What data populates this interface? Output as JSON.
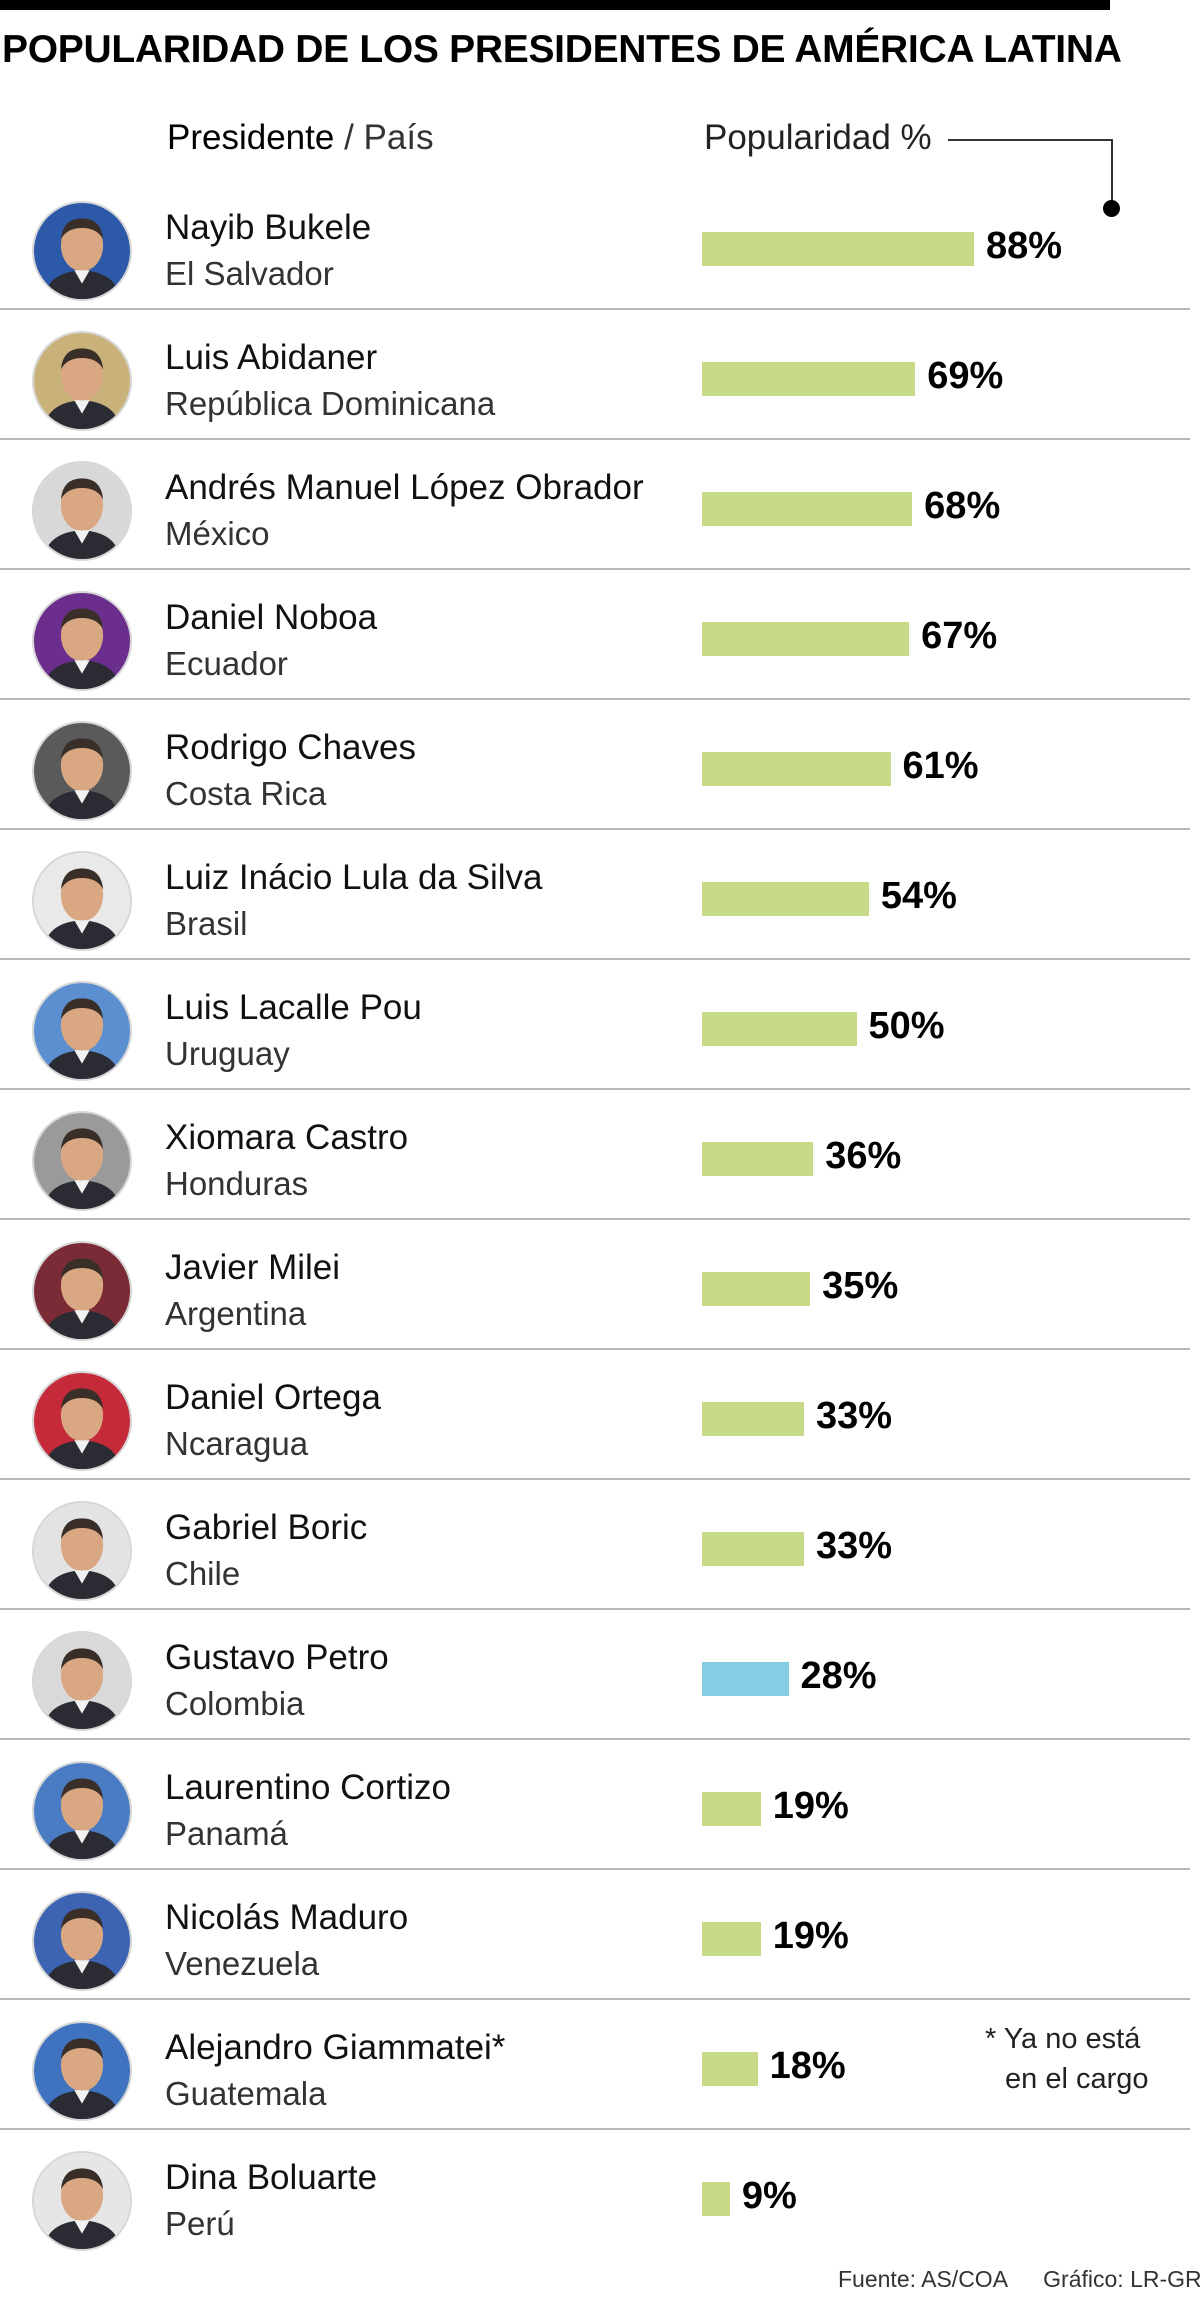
{
  "title": "POPULARIDAD DE LOS PRESIDENTES DE AMÉRICA LATINA",
  "header": {
    "president_label": "Presidente",
    "separator": "/",
    "country_label": "País",
    "popularity_label": "Popularidad %"
  },
  "note": [
    "* Ya no está",
    "en el cargo"
  ],
  "footer": {
    "source": "Fuente: AS/COA",
    "credit": "Gráfico: LR-GR"
  },
  "colors": {
    "bar": "#c6da87",
    "highlight_bar": "#86cde3"
  },
  "chart_data": {
    "type": "bar",
    "orientation": "horizontal",
    "title": "POPULARIDAD DE LOS PRESIDENTES DE AMÉRICA LATINA",
    "xlabel": "Popularidad %",
    "ylabel": "",
    "xlim": [
      0,
      100
    ],
    "unit": "%",
    "categories": [
      "Nayib Bukele",
      "Luis Abidaner",
      "Andrés Manuel López Obrador",
      "Daniel Noboa",
      "Rodrigo Chaves",
      "Luiz Inácio Lula da Silva",
      "Luis Lacalle Pou",
      "Xiomara Castro",
      "Javier Milei",
      "Daniel Ortega",
      "Gabriel Boric",
      "Gustavo Petro",
      "Laurentino Cortizo",
      "Nicolás Maduro",
      "Alejandro Giammatei*",
      "Dina Boluarte"
    ],
    "rows": [
      {
        "name": "Nayib Bukele",
        "country": "El Salvador",
        "value": 88,
        "label": "88%",
        "highlight": false,
        "avatar_icon": "portrait-icon",
        "avatar_color": "#2d5aa8"
      },
      {
        "name": "Luis Abidaner",
        "country": "República Dominicana",
        "value": 69,
        "label": "69%",
        "highlight": false,
        "avatar_icon": "portrait-icon",
        "avatar_color": "#c9b27a"
      },
      {
        "name": "Andrés Manuel López Obrador",
        "country": "México",
        "value": 68,
        "label": "68%",
        "highlight": false,
        "avatar_icon": "portrait-icon",
        "avatar_color": "#d8d8d8"
      },
      {
        "name": "Daniel Noboa",
        "country": "Ecuador",
        "value": 67,
        "label": "67%",
        "highlight": false,
        "avatar_icon": "portrait-icon",
        "avatar_color": "#6b2e8c"
      },
      {
        "name": "Rodrigo Chaves",
        "country": "Costa Rica",
        "value": 61,
        "label": "61%",
        "highlight": false,
        "avatar_icon": "portrait-icon",
        "avatar_color": "#5a5a5a"
      },
      {
        "name": "Luiz Inácio Lula da Silva",
        "country": "Brasil",
        "value": 54,
        "label": "54%",
        "highlight": false,
        "avatar_icon": "portrait-icon",
        "avatar_color": "#e9e9e9"
      },
      {
        "name": "Luis Lacalle Pou",
        "country": "Uruguay",
        "value": 50,
        "label": "50%",
        "highlight": false,
        "avatar_icon": "portrait-icon",
        "avatar_color": "#5b8fd0"
      },
      {
        "name": "Xiomara Castro",
        "country": "Honduras",
        "value": 36,
        "label": "36%",
        "highlight": false,
        "avatar_icon": "portrait-icon",
        "avatar_color": "#9a9a9a"
      },
      {
        "name": "Javier Milei",
        "country": "Argentina",
        "value": 35,
        "label": "35%",
        "highlight": false,
        "avatar_icon": "portrait-icon",
        "avatar_color": "#7a2b35"
      },
      {
        "name": "Daniel Ortega",
        "country": "Ncaragua",
        "value": 33,
        "label": "33%",
        "highlight": false,
        "avatar_icon": "portrait-icon",
        "avatar_color": "#c42a3a"
      },
      {
        "name": "Gabriel Boric",
        "country": "Chile",
        "value": 33,
        "label": "33%",
        "highlight": false,
        "avatar_icon": "portrait-icon",
        "avatar_color": "#e3e3e3"
      },
      {
        "name": "Gustavo Petro",
        "country": "Colombia",
        "value": 28,
        "label": "28%",
        "highlight": true,
        "avatar_icon": "portrait-icon",
        "avatar_color": "#d9d9d9"
      },
      {
        "name": "Laurentino Cortizo",
        "country": "Panamá",
        "value": 19,
        "label": "19%",
        "highlight": false,
        "avatar_icon": "portrait-icon",
        "avatar_color": "#4a7cc4"
      },
      {
        "name": "Nicolás Maduro",
        "country": "Venezuela",
        "value": 19,
        "label": "19%",
        "highlight": false,
        "avatar_icon": "portrait-icon",
        "avatar_color": "#3d63b3"
      },
      {
        "name": "Alejandro Giammatei*",
        "country": "Guatemala",
        "value": 18,
        "label": "18%",
        "highlight": false,
        "avatar_icon": "portrait-icon",
        "avatar_color": "#3f73c0"
      },
      {
        "name": "Dina Boluarte",
        "country": "Perú",
        "value": 9,
        "label": "9%",
        "highlight": false,
        "avatar_icon": "portrait-icon",
        "avatar_color": "#e6e6e6"
      }
    ]
  }
}
